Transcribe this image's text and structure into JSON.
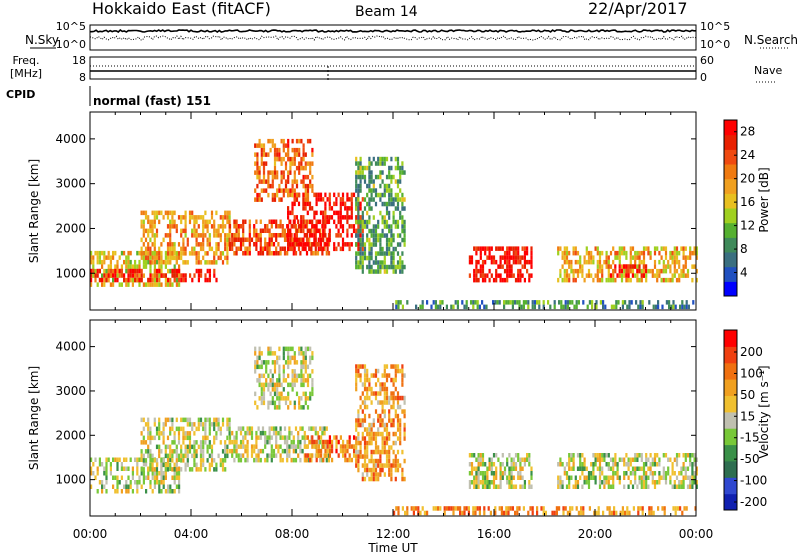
{
  "header": {
    "title": "Hokkaido East (fitACF)",
    "beam": "Beam 14",
    "date": "22/Apr/2017"
  },
  "top_panels": {
    "nsky_label": "N.Sky",
    "nsearch_label": "N.Search",
    "freq_label_line1": "Freq.",
    "freq_label_line2": "[MHz]",
    "nave_label": "Nave",
    "cpid_label": "CPID",
    "cpid_value": "normal (fast) 151",
    "noise_ticks": [
      "10^5",
      "10^0"
    ],
    "freq_ticks": [
      "18",
      "8"
    ],
    "nave_ticks": [
      "60",
      "0"
    ]
  },
  "colors": {
    "power": [
      "#0000ff",
      "#2050c0",
      "#3a6f80",
      "#3f8a5a",
      "#55b030",
      "#a0d020",
      "#e8c020",
      "#f0a020",
      "#f07a10",
      "#f04a10",
      "#e82000",
      "#ff0000"
    ],
    "velocity": [
      "#1020b0",
      "#3048d0",
      "#2e6e50",
      "#3a9048",
      "#78c838",
      "#c0c0b0",
      "#f0c030",
      "#f0a020",
      "#f07010",
      "#f04010",
      "#ff0000"
    ]
  },
  "chart_data": [
    {
      "type": "heatmap",
      "name": "power",
      "xlabel": "Time UT",
      "ylabel": "Slant Range [km]",
      "x_ticks": [
        "00:00",
        "04:00",
        "08:00",
        "12:00",
        "16:00",
        "20:00",
        "00:00"
      ],
      "y_ticks": [
        1000,
        2000,
        3000,
        4000
      ],
      "xlim": [
        0,
        24
      ],
      "ylim": [
        180,
        4600
      ],
      "colorbar_label": "Power [dB]",
      "colorbar_ticks": [
        4,
        8,
        12,
        16,
        20,
        24,
        28
      ],
      "colorbar_range": [
        0,
        30
      ],
      "regions": [
        {
          "t0": 0.0,
          "t1": 3.5,
          "r0": 700,
          "r1": 1500,
          "level": 0.55
        },
        {
          "t0": 2.0,
          "t1": 5.5,
          "r0": 1200,
          "r1": 2400,
          "level": 0.65
        },
        {
          "t0": 5.5,
          "t1": 9.5,
          "r0": 1400,
          "r1": 2200,
          "level": 0.8
        },
        {
          "t0": 7.8,
          "t1": 10.8,
          "r0": 1500,
          "r1": 2800,
          "level": 0.92
        },
        {
          "t0": 6.5,
          "t1": 8.8,
          "r0": 2600,
          "r1": 4000,
          "level": 0.75
        },
        {
          "t0": 0.0,
          "t1": 5.0,
          "r0": 800,
          "r1": 1100,
          "level": 0.9
        },
        {
          "t0": 15.0,
          "t1": 17.5,
          "r0": 800,
          "r1": 1600,
          "level": 0.95
        },
        {
          "t0": 18.5,
          "t1": 24.0,
          "r0": 800,
          "r1": 1600,
          "level": 0.6
        },
        {
          "t0": 20.5,
          "t1": 22.0,
          "r0": 900,
          "r1": 1200,
          "level": 0.9
        },
        {
          "t0": 10.5,
          "t1": 12.5,
          "r0": 1000,
          "r1": 3600,
          "level": 0.35
        },
        {
          "t0": 12.0,
          "t1": 24.0,
          "r0": 200,
          "r1": 400,
          "level": 0.3
        }
      ]
    },
    {
      "type": "heatmap",
      "name": "velocity",
      "xlabel": "Time UT",
      "ylabel": "Slant Range [km]",
      "x_ticks": [
        "00:00",
        "04:00",
        "08:00",
        "12:00",
        "16:00",
        "20:00",
        "00:00"
      ],
      "y_ticks": [
        1000,
        2000,
        3000,
        4000
      ],
      "xlim": [
        0,
        24
      ],
      "ylim": [
        180,
        4600
      ],
      "colorbar_label": "Velocity [m s⁻¹]",
      "colorbar_ticks": [
        200,
        100,
        50,
        15,
        -15,
        -50,
        -100,
        -200
      ],
      "regions": [
        {
          "t0": 0.0,
          "t1": 3.5,
          "r0": 700,
          "r1": 1500,
          "level": 0.5
        },
        {
          "t0": 2.0,
          "t1": 5.5,
          "r0": 1200,
          "r1": 2400,
          "level": 0.5
        },
        {
          "t0": 5.5,
          "t1": 9.5,
          "r0": 1400,
          "r1": 2200,
          "level": 0.5
        },
        {
          "t0": 8.5,
          "t1": 10.5,
          "r0": 1400,
          "r1": 2000,
          "level": 0.75
        },
        {
          "t0": 6.5,
          "t1": 8.8,
          "r0": 2600,
          "r1": 4000,
          "level": 0.5
        },
        {
          "t0": 15.0,
          "t1": 17.5,
          "r0": 800,
          "r1": 1600,
          "level": 0.5
        },
        {
          "t0": 18.5,
          "t1": 24.0,
          "r0": 800,
          "r1": 1600,
          "level": 0.5
        },
        {
          "t0": 10.5,
          "t1": 12.5,
          "r0": 1000,
          "r1": 3600,
          "level": 0.7
        },
        {
          "t0": 12.0,
          "t1": 24.0,
          "r0": 200,
          "r1": 400,
          "level": 0.72
        }
      ]
    }
  ]
}
